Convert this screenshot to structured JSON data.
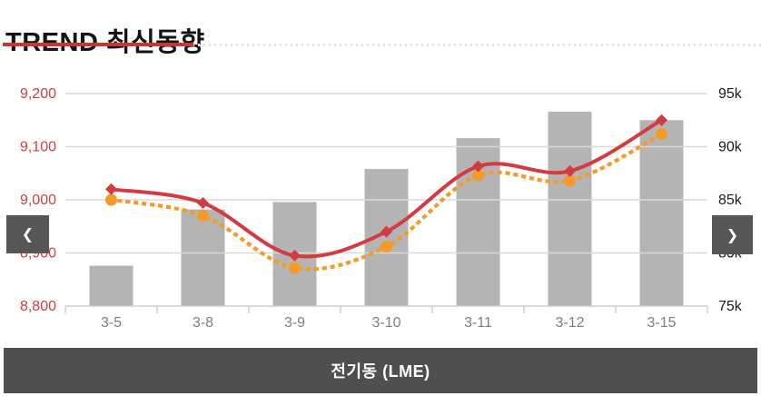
{
  "header": {
    "title": "TREND 최신동향"
  },
  "nav": {
    "left_arrow_icon": "❮",
    "right_arrow_icon": "❯"
  },
  "footer": {
    "label": "전기동 (LME)"
  },
  "colors": {
    "header_underline": "#cc3333",
    "divider_dots": "#e2e2e2",
    "footer_bg": "#4f4f4f",
    "nav_button_bg": "#565656",
    "bar": "#b4b4b4",
    "line_red": "#d23b42",
    "line_orange": "#f59a28",
    "gridline": "#d9d9d9",
    "axis_line": "#c9d0d8",
    "left_axis_text": "#c54043",
    "right_axis_text": "#1a1a1a",
    "x_axis_text": "#7e7e7e"
  },
  "chart_data": {
    "type": "combo",
    "categories": [
      "3-5",
      "3-8",
      "3-9",
      "3-10",
      "3-11",
      "3-12",
      "3-15"
    ],
    "series": [
      {
        "name": "inventory-bars",
        "type": "bar",
        "axis": "right",
        "color": "#b4b4b4",
        "values": [
          78.8,
          84.1,
          84.8,
          87.9,
          90.8,
          93.3,
          92.5
        ],
        "unit": "k"
      },
      {
        "name": "price-line-solid",
        "type": "line",
        "style": "solid",
        "marker": "diamond",
        "axis": "left",
        "color": "#d23b42",
        "values": [
          9020,
          8994,
          8895,
          8940,
          9063,
          9054,
          9150
        ]
      },
      {
        "name": "price-line-dotted",
        "type": "line",
        "style": "dotted",
        "marker": "circle",
        "axis": "left",
        "color": "#f59a28",
        "values": [
          9000,
          8970,
          8872,
          8912,
          9046,
          9036,
          9124
        ]
      }
    ],
    "left_axis": {
      "min": 8800,
      "max": 9200,
      "step": 100,
      "tick_labels": [
        "8,800",
        "8,900",
        "9,000",
        "9,100",
        "9,200"
      ],
      "color": "#c54043"
    },
    "right_axis": {
      "min": 75,
      "max": 95,
      "step": 5,
      "tick_labels": [
        "75k",
        "80k",
        "85k",
        "90k",
        "95k"
      ],
      "color": "#1a1a1a"
    },
    "x_axis": {
      "labels": [
        "3-5",
        "3-8",
        "3-9",
        "3-10",
        "3-11",
        "3-12",
        "3-15"
      ],
      "color": "#7e7e7e"
    },
    "grid": true,
    "legend": "none",
    "title": "TREND 최신동향",
    "footer_label": "전기동 (LME)"
  }
}
